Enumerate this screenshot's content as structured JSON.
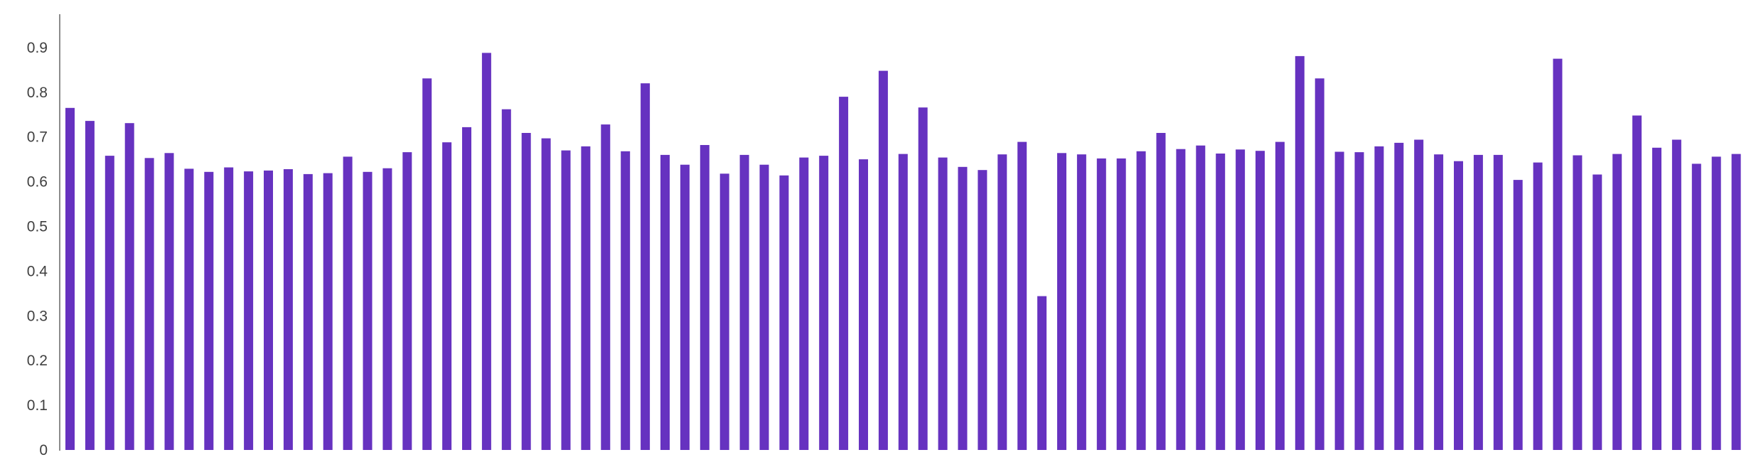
{
  "chart_data": {
    "type": "bar",
    "title": "",
    "xlabel": "",
    "ylabel": "",
    "ylim": [
      0,
      0.97
    ],
    "yticks": [
      "0",
      "0.1",
      "0.2",
      "0.3",
      "0.4",
      "0.5",
      "0.6",
      "0.7",
      "0.8",
      "0.9"
    ],
    "grid": false,
    "legend": "none",
    "bar_color": "#6632C0",
    "values": [
      0.765,
      0.736,
      0.658,
      0.731,
      0.653,
      0.664,
      0.629,
      0.622,
      0.632,
      0.623,
      0.625,
      0.628,
      0.617,
      0.619,
      0.656,
      0.622,
      0.63,
      0.666,
      0.831,
      0.688,
      0.722,
      0.888,
      0.762,
      0.709,
      0.697,
      0.67,
      0.679,
      0.728,
      0.668,
      0.82,
      0.66,
      0.638,
      0.682,
      0.618,
      0.66,
      0.638,
      0.614,
      0.654,
      0.658,
      0.79,
      0.65,
      0.848,
      0.662,
      0.766,
      0.654,
      0.633,
      0.626,
      0.661,
      0.689,
      0.344,
      0.664,
      0.661,
      0.652,
      0.652,
      0.668,
      0.709,
      0.673,
      0.681,
      0.663,
      0.672,
      0.669,
      0.689,
      0.881,
      0.831,
      0.667,
      0.666,
      0.679,
      0.687,
      0.694,
      0.661,
      0.646,
      0.66,
      0.66,
      0.604,
      0.643,
      0.875,
      0.659,
      0.616,
      0.662,
      0.748,
      0.676,
      0.694,
      0.64,
      0.656,
      0.662
    ]
  }
}
